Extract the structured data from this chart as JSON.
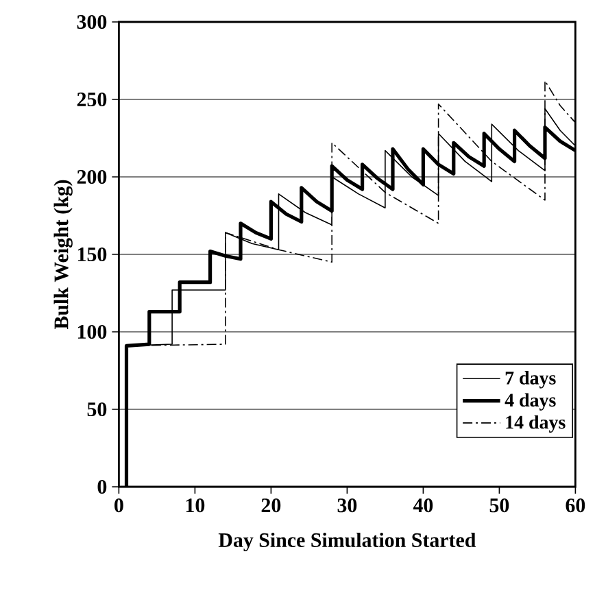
{
  "chart_data": {
    "type": "line",
    "xlabel": "Day Since Simulation Started",
    "ylabel": "Bulk Weight (kg)",
    "xlim": [
      0,
      60
    ],
    "ylim": [
      0,
      300
    ],
    "xticks": [
      0,
      10,
      20,
      30,
      40,
      50,
      60
    ],
    "yticks": [
      0,
      50,
      100,
      150,
      200,
      250,
      300
    ],
    "grid": "y",
    "legend": "bottom right",
    "marker": "none",
    "series": [
      {
        "name": "7 days",
        "color": "#000000",
        "line_style": "solid",
        "x": [
          1,
          1,
          7,
          7,
          14,
          14,
          17.5,
          21,
          21,
          24.5,
          28,
          28,
          31.5,
          35,
          35,
          38.5,
          42,
          42,
          45.5,
          49,
          49,
          52.5,
          56,
          56,
          58,
          60
        ],
        "values": [
          0,
          91,
          92,
          127,
          127,
          164,
          157,
          153,
          189,
          177,
          169,
          200,
          189,
          180,
          217,
          200,
          188,
          228,
          210,
          197,
          234,
          217,
          204,
          244,
          230,
          220
        ]
      },
      {
        "name": "4 days",
        "color": "#000000",
        "line_style": "solid",
        "x": [
          1,
          1,
          4,
          4,
          8,
          8,
          12,
          12,
          14,
          16,
          16,
          18,
          20,
          20,
          22,
          24,
          24,
          26,
          28,
          28,
          30,
          32,
          32,
          34,
          36,
          36,
          38,
          40,
          40,
          42,
          44,
          44,
          46,
          48,
          48,
          50,
          52,
          52,
          54,
          56,
          56,
          58,
          60
        ],
        "values": [
          0,
          91,
          92,
          113,
          113,
          132,
          132,
          152,
          149,
          147,
          170,
          164,
          160,
          184,
          176,
          171,
          193,
          184,
          178,
          207,
          198,
          192,
          208,
          199,
          192,
          218,
          205,
          195,
          218,
          208,
          202,
          222,
          213,
          207,
          228,
          218,
          210,
          230,
          220,
          212,
          232,
          223,
          217
        ]
      },
      {
        "name": "14 days",
        "color": "#000000",
        "line_style": "dashdot",
        "x": [
          1,
          1,
          14,
          14,
          21,
          28,
          28,
          35,
          42,
          42,
          49,
          56,
          56,
          58,
          60
        ],
        "values": [
          0,
          91,
          92,
          164,
          153,
          145,
          222,
          190,
          170,
          247,
          210,
          185,
          262,
          246,
          235
        ]
      }
    ]
  }
}
